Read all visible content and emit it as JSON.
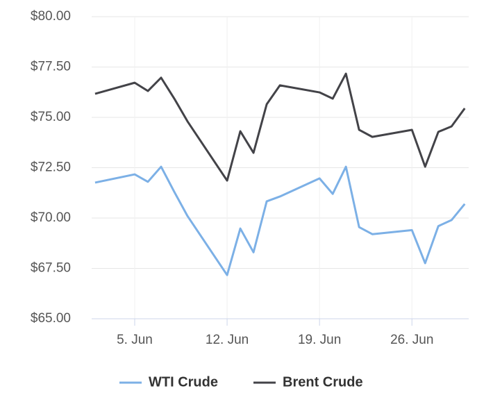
{
  "chart_data": {
    "type": "line",
    "x": [
      2,
      5,
      6,
      7,
      8,
      9,
      12,
      13,
      14,
      15,
      16,
      19,
      20,
      21,
      22,
      23,
      26,
      27,
      28,
      29,
      30
    ],
    "series": [
      {
        "name": "WTI Crude",
        "color": "#7cb0e6",
        "values": [
          71.76,
          72.17,
          71.8,
          72.55,
          71.3,
          70.1,
          67.17,
          69.48,
          68.3,
          70.83,
          71.07,
          71.97,
          71.2,
          72.55,
          69.55,
          69.2,
          69.4,
          67.76,
          69.6,
          69.9,
          70.7
        ]
      },
      {
        "name": "Brent Crude",
        "color": "#434348",
        "values": [
          76.17,
          76.72,
          76.31,
          76.97,
          75.93,
          74.8,
          71.86,
          74.31,
          73.24,
          75.65,
          76.59,
          76.24,
          75.93,
          77.17,
          74.38,
          74.03,
          74.38,
          72.55,
          74.28,
          74.55,
          75.45
        ]
      }
    ],
    "xlim": [
      1.74,
      30.3
    ],
    "xticks": [
      {
        "value": 5,
        "label": "5. Jun"
      },
      {
        "value": 12,
        "label": "12. Jun"
      },
      {
        "value": 19,
        "label": "19. Jun"
      },
      {
        "value": 26,
        "label": "26. Jun"
      }
    ],
    "ylim": [
      65,
      80
    ],
    "yticks": [
      {
        "value": 65,
        "label": "$65.00"
      },
      {
        "value": 67.5,
        "label": "$67.50"
      },
      {
        "value": 70,
        "label": "$70.00"
      },
      {
        "value": 72.5,
        "label": "$72.50"
      },
      {
        "value": 75,
        "label": "$75.00"
      },
      {
        "value": 77.5,
        "label": "$77.50"
      },
      {
        "value": 80,
        "label": "$80.00"
      }
    ],
    "grid": true,
    "legend": "bottom"
  }
}
